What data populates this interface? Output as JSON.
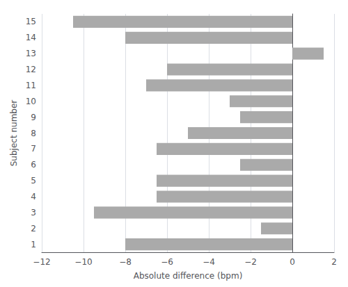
{
  "chart_data": {
    "type": "bar",
    "orientation": "horizontal",
    "categories": [
      "1",
      "2",
      "3",
      "4",
      "5",
      "6",
      "7",
      "8",
      "9",
      "10",
      "11",
      "12",
      "13",
      "14",
      "15"
    ],
    "values": [
      -8.0,
      -1.5,
      -9.5,
      -6.5,
      -6.5,
      -2.5,
      -6.5,
      -5.0,
      -2.5,
      -3.0,
      -7.0,
      -6.0,
      1.5,
      -8.0,
      -10.5
    ],
    "color": "#aaaaaa",
    "xlabel": "Absolute difference (bpm)",
    "ylabel": "Subject number",
    "xlim": [
      -12,
      2
    ],
    "xticks": [
      {
        "value": -12,
        "label": "−12"
      },
      {
        "value": -10,
        "label": "−10"
      },
      {
        "value": -8,
        "label": "−8"
      },
      {
        "value": -6,
        "label": "−6"
      },
      {
        "value": -4,
        "label": "−4"
      },
      {
        "value": -2,
        "label": "−2"
      },
      0,
      2
    ],
    "grid": true
  }
}
